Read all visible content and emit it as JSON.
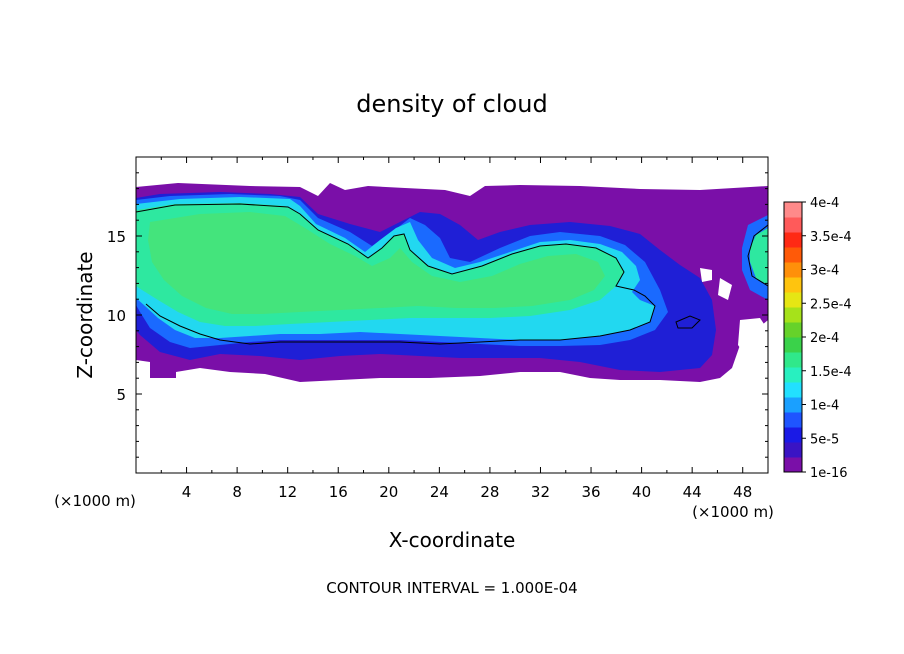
{
  "chart_data": {
    "type": "heatmap",
    "title": "density of cloud",
    "xlabel": "X-coordinate",
    "ylabel": "Z-coordinate",
    "x_unit": "(×1000 m)",
    "y_unit": "(×1000 m)",
    "xlim": [
      0,
      50
    ],
    "ylim": [
      0,
      20
    ],
    "x_ticks": [
      4,
      8,
      12,
      16,
      20,
      24,
      28,
      32,
      36,
      40,
      44,
      48
    ],
    "y_ticks": [
      5,
      10,
      15
    ],
    "footnote": "CONTOUR INTERVAL = 1.000E-04",
    "colorbar": {
      "labels": [
        "1e-16",
        "5e-5",
        "1e-4",
        "1.5e-4",
        "2e-4",
        "2.5e-4",
        "3e-4",
        "3.5e-4",
        "4e-4"
      ],
      "colors": [
        "#7a0fa8",
        "#3a14c4",
        "#1a1ae6",
        "#1f55ff",
        "#1aa0ff",
        "#22e0ff",
        "#28f0c0",
        "#30e88a",
        "#3ad24a",
        "#66d22a",
        "#a6e21a",
        "#e6e614",
        "#ffc40e",
        "#ff900a",
        "#ff5a08",
        "#ff2a14",
        "#ff5a5a",
        "#ff8a8a"
      ]
    },
    "contour_levels": [
      1e-16,
      0.0001,
      0.0002,
      0.0003,
      0.0004
    ]
  }
}
